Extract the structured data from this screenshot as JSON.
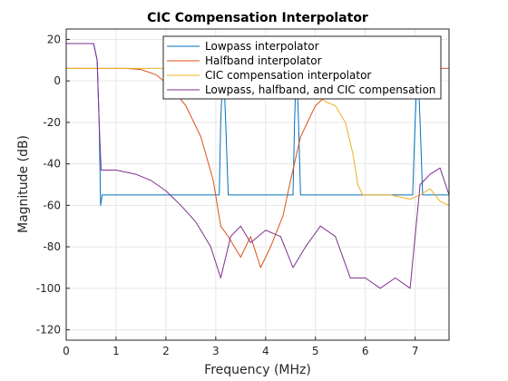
{
  "chart_data": {
    "type": "line",
    "title": "CIC Compensation Interpolator",
    "xlabel": "Frequency (MHz)",
    "ylabel": "Magnitude (dB)",
    "xlim": [
      0,
      7.68
    ],
    "ylim": [
      -125,
      25
    ],
    "xticks": [
      0,
      1,
      2,
      3,
      4,
      5,
      6,
      7
    ],
    "yticks": [
      20,
      0,
      -20,
      -40,
      -60,
      -80,
      -100,
      -120
    ],
    "grid": true,
    "legend_position": "top-right",
    "series": [
      {
        "name": "Lowpass interpolator",
        "color": "#0072BD",
        "points": [
          [
            0,
            18
          ],
          [
            0.55,
            18
          ],
          [
            0.62,
            10
          ],
          [
            0.66,
            -20
          ],
          [
            0.69,
            -60
          ],
          [
            0.72,
            -55
          ],
          [
            1.0,
            -55
          ],
          [
            2.0,
            -55
          ],
          [
            3.07,
            -55
          ],
          [
            3.1,
            -20
          ],
          [
            3.15,
            10
          ],
          [
            3.2,
            -20
          ],
          [
            3.25,
            -55
          ],
          [
            4.0,
            -55
          ],
          [
            4.55,
            -55
          ],
          [
            4.58,
            -20
          ],
          [
            4.62,
            10
          ],
          [
            4.66,
            -20
          ],
          [
            4.7,
            -55
          ],
          [
            6.0,
            -55
          ],
          [
            6.95,
            -55
          ],
          [
            7.0,
            -20
          ],
          [
            7.05,
            10
          ],
          [
            7.1,
            -20
          ],
          [
            7.15,
            -55
          ],
          [
            7.68,
            -55
          ]
        ]
      },
      {
        "name": "Halfband interpolator",
        "color": "#D95319",
        "points": [
          [
            0,
            6
          ],
          [
            1.2,
            6
          ],
          [
            1.5,
            5.5
          ],
          [
            1.8,
            3
          ],
          [
            2.1,
            -3
          ],
          [
            2.4,
            -12
          ],
          [
            2.7,
            -27
          ],
          [
            2.95,
            -48
          ],
          [
            3.1,
            -70
          ],
          [
            3.25,
            -75
          ],
          [
            3.5,
            -85
          ],
          [
            3.7,
            -75
          ],
          [
            3.9,
            -90
          ],
          [
            4.1,
            -80
          ],
          [
            4.35,
            -65
          ],
          [
            4.5,
            -48
          ],
          [
            4.7,
            -27
          ],
          [
            5.0,
            -12
          ],
          [
            5.4,
            -3
          ],
          [
            5.8,
            3
          ],
          [
            6.2,
            5.5
          ],
          [
            6.5,
            6
          ],
          [
            7.68,
            6
          ]
        ]
      },
      {
        "name": "CIC compensation interpolator",
        "color": "#EDB120",
        "points": [
          [
            0,
            6
          ],
          [
            4.6,
            6
          ],
          [
            4.8,
            0
          ],
          [
            5.0,
            -6
          ],
          [
            5.2,
            -10
          ],
          [
            5.4,
            -12
          ],
          [
            5.6,
            -20
          ],
          [
            5.75,
            -35
          ],
          [
            5.85,
            -50
          ],
          [
            5.95,
            -55
          ],
          [
            6.5,
            -55
          ],
          [
            6.9,
            -57
          ],
          [
            7.1,
            -55
          ],
          [
            7.3,
            -52
          ],
          [
            7.5,
            -58
          ],
          [
            7.68,
            -60
          ]
        ]
      },
      {
        "name": "Lowpass, halfband, and CIC compensation",
        "color": "#7E2F8E",
        "points": [
          [
            0,
            18
          ],
          [
            0.55,
            18
          ],
          [
            0.62,
            10
          ],
          [
            0.66,
            -20
          ],
          [
            0.7,
            -43
          ],
          [
            1.0,
            -43
          ],
          [
            1.4,
            -45
          ],
          [
            1.7,
            -48
          ],
          [
            2.0,
            -53
          ],
          [
            2.3,
            -60
          ],
          [
            2.6,
            -68
          ],
          [
            2.9,
            -80
          ],
          [
            3.1,
            -95
          ],
          [
            3.3,
            -75
          ],
          [
            3.5,
            -70
          ],
          [
            3.7,
            -78
          ],
          [
            4.0,
            -72
          ],
          [
            4.3,
            -75
          ],
          [
            4.55,
            -90
          ],
          [
            4.8,
            -80
          ],
          [
            5.1,
            -70
          ],
          [
            5.4,
            -75
          ],
          [
            5.7,
            -95
          ],
          [
            6.0,
            -95
          ],
          [
            6.3,
            -100
          ],
          [
            6.6,
            -95
          ],
          [
            6.9,
            -100
          ],
          [
            7.1,
            -50
          ],
          [
            7.3,
            -45
          ],
          [
            7.5,
            -42
          ],
          [
            7.68,
            -55
          ]
        ]
      }
    ]
  }
}
